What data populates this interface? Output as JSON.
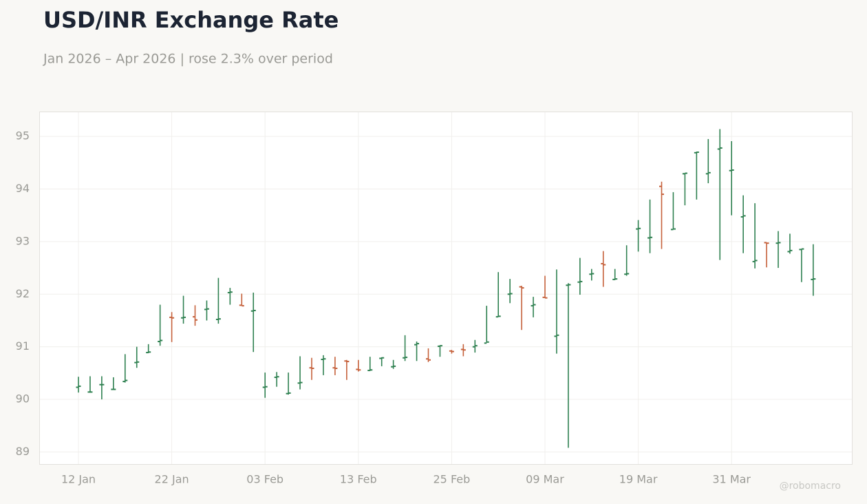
{
  "chart_data": {
    "type": "ohlc",
    "title": "USD/INR Exchange Rate",
    "subtitle": "Jan 2026 – Apr 2026 | rose 2.3% over period",
    "watermark": "@robomacro",
    "up_color": "#2e8050",
    "down_color": "#c5603a",
    "grid": true,
    "ylim": [
      88.77,
      95.46
    ],
    "yticks": [
      89,
      90,
      91,
      92,
      93,
      94,
      95
    ],
    "categories": [
      "12 Jan",
      null,
      null,
      null,
      null,
      null,
      null,
      null,
      "22 Jan",
      null,
      null,
      null,
      null,
      null,
      null,
      null,
      "03 Feb",
      null,
      null,
      null,
      null,
      null,
      null,
      null,
      "13 Feb",
      null,
      null,
      null,
      null,
      null,
      null,
      null,
      "25 Feb",
      null,
      null,
      null,
      null,
      null,
      null,
      null,
      "09 Mar",
      null,
      null,
      null,
      null,
      null,
      null,
      null,
      "19 Mar",
      null,
      null,
      null,
      null,
      null,
      null,
      null,
      "31 Mar",
      null,
      null,
      null,
      null,
      null,
      null,
      null
    ],
    "open": [
      90.23,
      90.14,
      90.28,
      90.19,
      90.34,
      90.7,
      90.89,
      91.1,
      91.56,
      91.55,
      91.57,
      91.71,
      91.52,
      92.03,
      91.79,
      91.68,
      90.23,
      90.42,
      90.11,
      90.31,
      90.6,
      90.76,
      90.6,
      90.73,
      90.57,
      90.55,
      90.78,
      90.62,
      90.79,
      91.04,
      90.77,
      91.01,
      90.92,
      90.95,
      91.0,
      91.07,
      91.57,
      92.0,
      92.14,
      91.78,
      91.94,
      91.2,
      92.17,
      92.23,
      92.38,
      92.58,
      92.28,
      92.38,
      93.24,
      93.07,
      94.05,
      93.23,
      94.29,
      94.69,
      94.29,
      94.76,
      94.35,
      93.47,
      92.62,
      92.98,
      92.97,
      92.81,
      92.85,
      92.28
    ],
    "high": [
      90.43,
      90.44,
      90.44,
      90.42,
      90.86,
      91.0,
      91.05,
      91.8,
      91.66,
      91.97,
      91.79,
      91.88,
      92.31,
      92.12,
      92.01,
      92.03,
      90.51,
      90.52,
      90.51,
      90.82,
      90.79,
      90.84,
      90.81,
      90.75,
      90.75,
      90.81,
      90.8,
      90.75,
      91.22,
      91.1,
      90.97,
      91.03,
      90.94,
      91.05,
      91.13,
      91.78,
      92.42,
      92.29,
      92.16,
      91.95,
      92.35,
      92.47,
      92.21,
      92.69,
      92.48,
      92.82,
      92.48,
      92.93,
      93.41,
      93.8,
      94.14,
      93.94,
      94.3,
      94.71,
      94.95,
      95.14,
      94.91,
      93.88,
      93.73,
      92.98,
      93.2,
      93.15,
      92.86,
      92.95
    ],
    "low": [
      90.13,
      90.13,
      90.0,
      90.19,
      90.32,
      90.6,
      90.88,
      91.02,
      91.09,
      91.44,
      91.4,
      91.5,
      91.44,
      91.8,
      91.79,
      90.9,
      90.03,
      90.24,
      90.09,
      90.19,
      90.37,
      90.46,
      90.46,
      90.37,
      90.53,
      90.54,
      90.63,
      90.58,
      90.73,
      90.73,
      90.71,
      90.81,
      90.87,
      90.82,
      90.89,
      91.08,
      91.57,
      91.83,
      91.32,
      91.56,
      91.93,
      90.87,
      89.08,
      91.99,
      92.26,
      92.14,
      92.27,
      92.35,
      92.81,
      92.78,
      92.86,
      93.24,
      93.69,
      93.8,
      94.11,
      92.65,
      93.5,
      92.78,
      92.49,
      92.51,
      92.5,
      92.77,
      92.23,
      91.97
    ],
    "close": [
      90.25,
      90.14,
      90.28,
      90.19,
      90.36,
      90.71,
      90.9,
      91.12,
      91.55,
      91.56,
      91.51,
      91.72,
      91.53,
      92.04,
      91.78,
      91.69,
      90.24,
      90.43,
      90.12,
      90.32,
      90.59,
      90.77,
      90.59,
      90.72,
      90.56,
      90.56,
      90.79,
      90.63,
      90.8,
      91.06,
      90.75,
      91.02,
      90.91,
      90.94,
      91.02,
      91.09,
      91.58,
      92.01,
      92.12,
      91.8,
      91.93,
      91.22,
      92.18,
      92.24,
      92.39,
      92.56,
      92.29,
      92.39,
      93.25,
      93.08,
      93.9,
      93.24,
      94.3,
      94.7,
      94.31,
      94.78,
      94.36,
      93.49,
      92.64,
      92.97,
      92.98,
      92.83,
      92.86,
      92.29
    ]
  }
}
